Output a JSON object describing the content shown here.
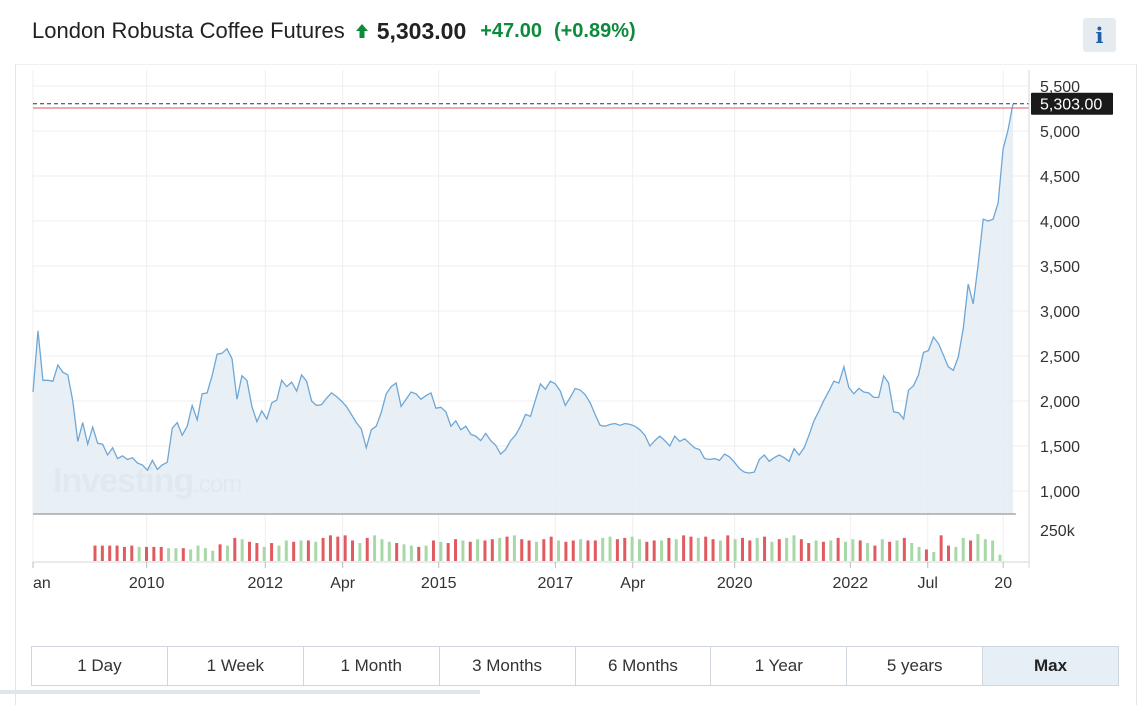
{
  "header": {
    "title": "London Robusta Coffee Futures",
    "price": "5,303.00",
    "change": "+47.00",
    "change_pct": "(+0.89%)",
    "direction_icon": "up-arrow-icon",
    "change_color": "#0e8a3c"
  },
  "info_button": {
    "label": "i",
    "icon": "info-icon"
  },
  "watermark": {
    "brand": "Investing",
    "suffix": ".com"
  },
  "tabs": [
    {
      "label": "1 Day",
      "active": false
    },
    {
      "label": "1 Week",
      "active": false
    },
    {
      "label": "1 Month",
      "active": false
    },
    {
      "label": "3 Months",
      "active": false
    },
    {
      "label": "6 Months",
      "active": false
    },
    {
      "label": "1 Year",
      "active": false
    },
    {
      "label": "5 years",
      "active": false
    },
    {
      "label": "Max",
      "active": true
    }
  ],
  "chart_data": {
    "type": "area",
    "line_color": "#6ea7d6",
    "fill_color": "#e4edf5",
    "ylim": [
      1000,
      5500
    ],
    "y_ticks": [
      "1,000",
      "1,500",
      "2,000",
      "2,500",
      "3,000",
      "3,500",
      "4,000",
      "4,500",
      "5,000",
      "5,500"
    ],
    "y_tick_values": [
      1000,
      1500,
      2000,
      2500,
      3000,
      3500,
      4000,
      4500,
      5000,
      5500
    ],
    "last_price_label": "5,303.00",
    "last_price": 5303,
    "reference_line": {
      "value": 5256,
      "color": "#e05a5a"
    },
    "x_ticks": [
      {
        "label": "an",
        "t": 0
      },
      {
        "label": "2010",
        "t": 0.116
      },
      {
        "label": "2012",
        "t": 0.237
      },
      {
        "label": "Apr",
        "t": 0.316
      },
      {
        "label": "2015",
        "t": 0.414
      },
      {
        "label": "2017",
        "t": 0.533
      },
      {
        "label": "Apr",
        "t": 0.612
      },
      {
        "label": "2020",
        "t": 0.716
      },
      {
        "label": "2022",
        "t": 0.834
      },
      {
        "label": "Jul",
        "t": 0.913
      },
      {
        "label": "20",
        "t": 0.99
      }
    ],
    "price_series": [
      2100,
      2780,
      2230,
      2230,
      2220,
      2400,
      2320,
      2290,
      2000,
      1550,
      1760,
      1520,
      1710,
      1530,
      1520,
      1400,
      1480,
      1360,
      1390,
      1350,
      1370,
      1310,
      1290,
      1230,
      1340,
      1240,
      1290,
      1320,
      1700,
      1760,
      1620,
      1720,
      1950,
      1790,
      2080,
      2090,
      2280,
      2520,
      2530,
      2580,
      2470,
      2020,
      2280,
      2230,
      1940,
      1770,
      1890,
      1800,
      1980,
      2010,
      2230,
      2160,
      2210,
      2110,
      2290,
      2220,
      2000,
      1950,
      1960,
      2030,
      2090,
      2050,
      2000,
      1940,
      1850,
      1760,
      1690,
      1480,
      1680,
      1720,
      1870,
      2080,
      2160,
      2200,
      1940,
      2020,
      2100,
      2080,
      2020,
      2060,
      2090,
      1920,
      1930,
      1880,
      1720,
      1780,
      1680,
      1720,
      1630,
      1610,
      1560,
      1640,
      1560,
      1510,
      1410,
      1460,
      1560,
      1620,
      1720,
      1850,
      1830,
      2010,
      2190,
      2130,
      2220,
      2190,
      2110,
      1950,
      2040,
      2140,
      2120,
      2070,
      1980,
      1850,
      1730,
      1720,
      1740,
      1750,
      1730,
      1750,
      1740,
      1720,
      1680,
      1620,
      1500,
      1560,
      1610,
      1560,
      1500,
      1610,
      1550,
      1580,
      1530,
      1480,
      1460,
      1360,
      1350,
      1360,
      1340,
      1410,
      1380,
      1320,
      1250,
      1210,
      1200,
      1210,
      1350,
      1400,
      1330,
      1370,
      1400,
      1370,
      1330,
      1470,
      1400,
      1480,
      1620,
      1780,
      1890,
      2010,
      2110,
      2220,
      2200,
      2380,
      2150,
      2080,
      2140,
      2100,
      2090,
      2040,
      2040,
      2280,
      2200,
      1880,
      1870,
      1800,
      2120,
      2170,
      2290,
      2540,
      2560,
      2710,
      2640,
      2510,
      2380,
      2340,
      2490,
      2810,
      3300,
      3080,
      3520,
      4020,
      4000,
      4020,
      4200,
      4800,
      5010,
      5303
    ],
    "volume_series": [
      {
        "v": 0.6,
        "dir": "down"
      },
      {
        "v": 0.6,
        "dir": "down"
      },
      {
        "v": 0.6,
        "dir": "down"
      },
      {
        "v": 0.6,
        "dir": "down"
      },
      {
        "v": 0.55,
        "dir": "down"
      },
      {
        "v": 0.6,
        "dir": "down"
      },
      {
        "v": 0.55,
        "dir": "up"
      },
      {
        "v": 0.55,
        "dir": "down"
      },
      {
        "v": 0.55,
        "dir": "down"
      },
      {
        "v": 0.55,
        "dir": "down"
      },
      {
        "v": 0.5,
        "dir": "up"
      },
      {
        "v": 0.5,
        "dir": "up"
      },
      {
        "v": 0.5,
        "dir": "down"
      },
      {
        "v": 0.45,
        "dir": "up"
      },
      {
        "v": 0.6,
        "dir": "up"
      },
      {
        "v": 0.5,
        "dir": "up"
      },
      {
        "v": 0.4,
        "dir": "up"
      },
      {
        "v": 0.65,
        "dir": "down"
      },
      {
        "v": 0.6,
        "dir": "up"
      },
      {
        "v": 0.9,
        "dir": "down"
      },
      {
        "v": 0.85,
        "dir": "up"
      },
      {
        "v": 0.75,
        "dir": "down"
      },
      {
        "v": 0.7,
        "dir": "down"
      },
      {
        "v": 0.55,
        "dir": "up"
      },
      {
        "v": 0.7,
        "dir": "down"
      },
      {
        "v": 0.6,
        "dir": "up"
      },
      {
        "v": 0.8,
        "dir": "up"
      },
      {
        "v": 0.75,
        "dir": "down"
      },
      {
        "v": 0.8,
        "dir": "up"
      },
      {
        "v": 0.8,
        "dir": "down"
      },
      {
        "v": 0.75,
        "dir": "up"
      },
      {
        "v": 0.9,
        "dir": "down"
      },
      {
        "v": 1.0,
        "dir": "down"
      },
      {
        "v": 0.95,
        "dir": "down"
      },
      {
        "v": 1.0,
        "dir": "down"
      },
      {
        "v": 0.8,
        "dir": "down"
      },
      {
        "v": 0.7,
        "dir": "up"
      },
      {
        "v": 0.9,
        "dir": "down"
      },
      {
        "v": 1.0,
        "dir": "up"
      },
      {
        "v": 0.85,
        "dir": "up"
      },
      {
        "v": 0.75,
        "dir": "up"
      },
      {
        "v": 0.7,
        "dir": "down"
      },
      {
        "v": 0.65,
        "dir": "up"
      },
      {
        "v": 0.6,
        "dir": "up"
      },
      {
        "v": 0.55,
        "dir": "down"
      },
      {
        "v": 0.6,
        "dir": "up"
      },
      {
        "v": 0.8,
        "dir": "down"
      },
      {
        "v": 0.75,
        "dir": "up"
      },
      {
        "v": 0.7,
        "dir": "down"
      },
      {
        "v": 0.85,
        "dir": "down"
      },
      {
        "v": 0.8,
        "dir": "up"
      },
      {
        "v": 0.75,
        "dir": "down"
      },
      {
        "v": 0.85,
        "dir": "up"
      },
      {
        "v": 0.8,
        "dir": "down"
      },
      {
        "v": 0.85,
        "dir": "down"
      },
      {
        "v": 0.9,
        "dir": "up"
      },
      {
        "v": 0.95,
        "dir": "down"
      },
      {
        "v": 1.0,
        "dir": "up"
      },
      {
        "v": 0.85,
        "dir": "down"
      },
      {
        "v": 0.8,
        "dir": "down"
      },
      {
        "v": 0.75,
        "dir": "up"
      },
      {
        "v": 0.85,
        "dir": "down"
      },
      {
        "v": 0.95,
        "dir": "down"
      },
      {
        "v": 0.8,
        "dir": "up"
      },
      {
        "v": 0.75,
        "dir": "down"
      },
      {
        "v": 0.8,
        "dir": "down"
      },
      {
        "v": 0.85,
        "dir": "up"
      },
      {
        "v": 0.8,
        "dir": "down"
      },
      {
        "v": 0.8,
        "dir": "down"
      },
      {
        "v": 0.9,
        "dir": "up"
      },
      {
        "v": 0.95,
        "dir": "up"
      },
      {
        "v": 0.85,
        "dir": "down"
      },
      {
        "v": 0.9,
        "dir": "down"
      },
      {
        "v": 0.95,
        "dir": "up"
      },
      {
        "v": 0.85,
        "dir": "up"
      },
      {
        "v": 0.75,
        "dir": "down"
      },
      {
        "v": 0.8,
        "dir": "down"
      },
      {
        "v": 0.8,
        "dir": "up"
      },
      {
        "v": 0.9,
        "dir": "down"
      },
      {
        "v": 0.85,
        "dir": "up"
      },
      {
        "v": 1.0,
        "dir": "down"
      },
      {
        "v": 0.95,
        "dir": "down"
      },
      {
        "v": 0.9,
        "dir": "up"
      },
      {
        "v": 0.95,
        "dir": "down"
      },
      {
        "v": 0.85,
        "dir": "down"
      },
      {
        "v": 0.8,
        "dir": "up"
      },
      {
        "v": 1.0,
        "dir": "down"
      },
      {
        "v": 0.85,
        "dir": "up"
      },
      {
        "v": 0.9,
        "dir": "down"
      },
      {
        "v": 0.8,
        "dir": "down"
      },
      {
        "v": 0.9,
        "dir": "up"
      },
      {
        "v": 0.95,
        "dir": "down"
      },
      {
        "v": 0.75,
        "dir": "up"
      },
      {
        "v": 0.85,
        "dir": "down"
      },
      {
        "v": 0.9,
        "dir": "up"
      },
      {
        "v": 1.0,
        "dir": "up"
      },
      {
        "v": 0.85,
        "dir": "down"
      },
      {
        "v": 0.7,
        "dir": "down"
      },
      {
        "v": 0.8,
        "dir": "up"
      },
      {
        "v": 0.75,
        "dir": "down"
      },
      {
        "v": 0.8,
        "dir": "up"
      },
      {
        "v": 0.9,
        "dir": "down"
      },
      {
        "v": 0.75,
        "dir": "up"
      },
      {
        "v": 0.85,
        "dir": "up"
      },
      {
        "v": 0.8,
        "dir": "down"
      },
      {
        "v": 0.7,
        "dir": "up"
      },
      {
        "v": 0.6,
        "dir": "down"
      },
      {
        "v": 0.85,
        "dir": "up"
      },
      {
        "v": 0.75,
        "dir": "down"
      },
      {
        "v": 0.8,
        "dir": "up"
      },
      {
        "v": 0.9,
        "dir": "down"
      },
      {
        "v": 0.7,
        "dir": "up"
      },
      {
        "v": 0.55,
        "dir": "up"
      },
      {
        "v": 0.45,
        "dir": "down"
      },
      {
        "v": 0.35,
        "dir": "up"
      },
      {
        "v": 1.0,
        "dir": "down"
      },
      {
        "v": 0.6,
        "dir": "down"
      },
      {
        "v": 0.55,
        "dir": "up"
      },
      {
        "v": 0.9,
        "dir": "up"
      },
      {
        "v": 0.8,
        "dir": "down"
      },
      {
        "v": 1.05,
        "dir": "up"
      },
      {
        "v": 0.85,
        "dir": "up"
      },
      {
        "v": 0.8,
        "dir": "up"
      },
      {
        "v": 0.25,
        "dir": "up"
      }
    ],
    "volume_label": "250k",
    "grid": true,
    "watermark_text": "Investing.com"
  }
}
